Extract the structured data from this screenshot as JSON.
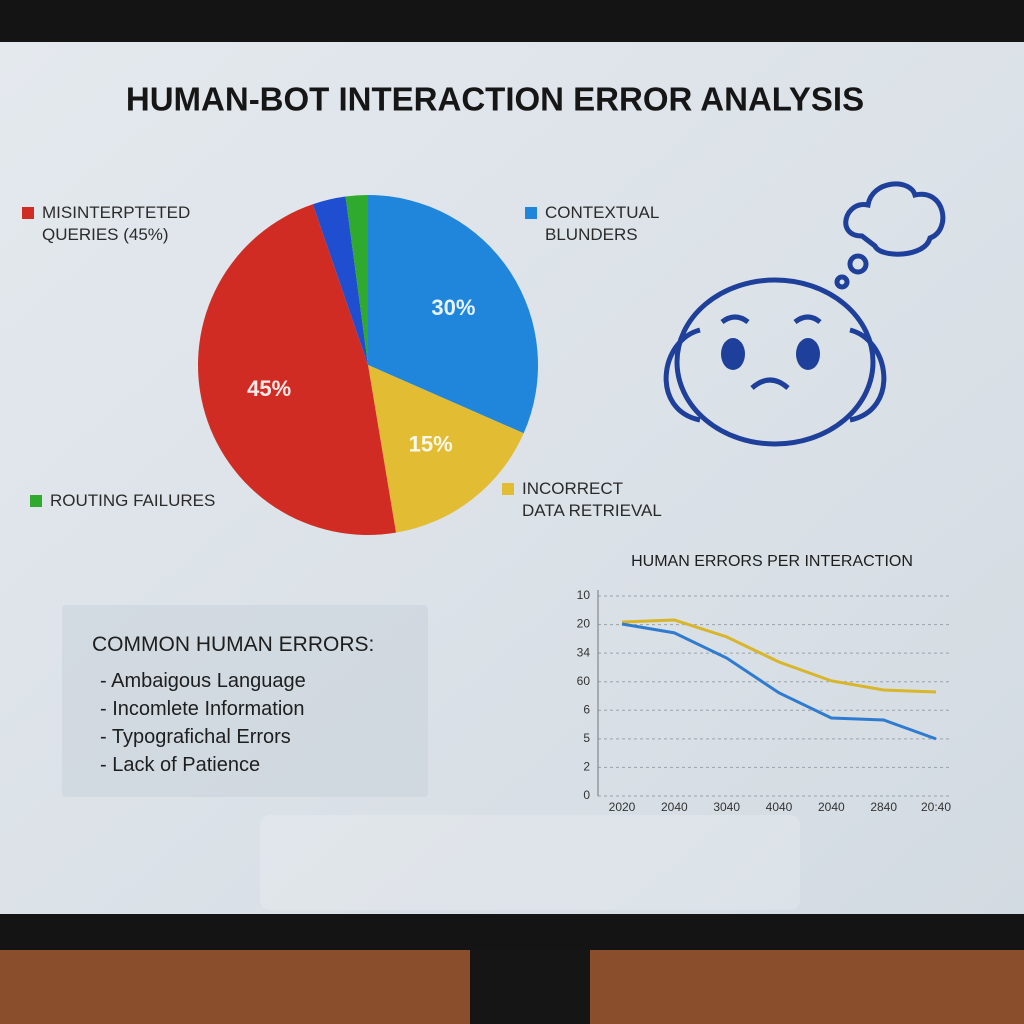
{
  "header": {
    "title": "HUMAN-BOT INTERACTION ERROR ANALYSIS"
  },
  "notes": {
    "heading": "COMMON HUMAN ERRORS:",
    "items": [
      "- Ambaigous Language",
      "- Incomlete Information",
      "- Typografichal Errors",
      "- Lack of Patience"
    ]
  },
  "chart_data": [
    {
      "type": "pie",
      "categories": [
        "CONTEXTUAL BLUNDERS",
        "INCORRECT DATA RETRIEVAL",
        "MISINTERPTETED QUERIES (45%)",
        null,
        "ROUTING FAILURES"
      ],
      "values": [
        30,
        15,
        45,
        3,
        2
      ],
      "value_labels": [
        "30%",
        "15%",
        "45%",
        null,
        null
      ],
      "colors": [
        "#1f86dc",
        "#e2bd34",
        "#d12c24",
        "#1f4fd0",
        "#2faa2f"
      ]
    },
    {
      "type": "line",
      "title": "HUMAN ERRORS PER INTERACTION",
      "categories": [
        "2020",
        "2040",
        "3040",
        "4040",
        "2040",
        "2840",
        "20:40"
      ],
      "series": [
        {
          "color": "#d9b52a",
          "values": [
            6.09,
            6.16,
            5.57,
            4.69,
            4.03,
            3.71,
            3.64
          ]
        },
        {
          "color": "#2f7bd0",
          "values": [
            6.02,
            5.71,
            4.83,
            3.61,
            2.73,
            2.66,
            2.0
          ]
        }
      ],
      "ylim": [
        0,
        7
      ],
      "yticks": [
        0,
        {
          "value": 1,
          "label": "2"
        },
        {
          "value": 2,
          "label": "5"
        },
        {
          "value": 3,
          "label": "6"
        },
        {
          "value": 4,
          "label": "60"
        },
        {
          "value": 5,
          "label": "34"
        },
        {
          "value": 6,
          "label": "20"
        },
        {
          "value": 7,
          "label": "10"
        }
      ],
      "grid": true
    }
  ]
}
